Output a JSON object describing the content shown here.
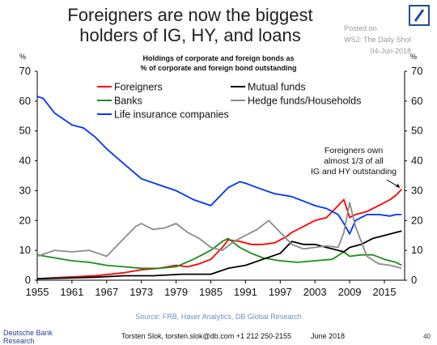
{
  "header": {
    "title_line1": "Foreigners are now the biggest",
    "title_line2": "holders of IG, HY, and loans",
    "posted_on": "Posted on",
    "posted_source": "WSJ: The Daily Shot",
    "posted_date": "04-Jun-2018"
  },
  "footer": {
    "bank_line1": "Deutsche Bank",
    "bank_line2": "Research",
    "author": "Torsten Slok, torsten.slok@db.com  +1 212 250-2155",
    "date": "June 2018",
    "page": "40",
    "source": "Source: FRB, Haver Analytics, DB Global Research"
  },
  "colors": {
    "foreigners": "#ff0000",
    "banks": "#1a8f1a",
    "life_insurance": "#0033ff",
    "mutual_funds": "#000000",
    "hedge_funds_households": "#8c8c8c",
    "brand": "#1d4f9c"
  },
  "chart_data": {
    "type": "line",
    "title": "Holdings of corporate and foreign bonds as",
    "subtitle": "% of corporate and foreign bond outstanding",
    "ylabel_left": "%",
    "ylabel_right": "%",
    "xlim": [
      1955,
      2018.5
    ],
    "ylim": [
      0,
      70
    ],
    "x_ticks": [
      "1955",
      "1961",
      "1967",
      "1973",
      "1979",
      "1985",
      "1991",
      "1997",
      "2003",
      "2009",
      "2015"
    ],
    "y_ticks": [
      "0",
      "10",
      "20",
      "30",
      "40",
      "50",
      "60",
      "70"
    ],
    "grid": false,
    "legend_position": "top-left",
    "annotation": {
      "lines": [
        "Foreigners own",
        "almost 1/3 of all",
        "IG and HY outstanding"
      ],
      "points_to": [
        2017.8,
        30.5
      ]
    },
    "series": [
      {
        "name": "Foreigners",
        "color": "#ff0000",
        "x": [
          1955,
          1960,
          1965,
          1970,
          1973,
          1976,
          1979,
          1981,
          1983,
          1985,
          1987,
          1988,
          1990,
          1992,
          1994,
          1996,
          1998,
          1999,
          2001,
          2003,
          2005,
          2007,
          2008,
          2009,
          2010,
          2012,
          2014,
          2015,
          2016,
          2017,
          2018
        ],
        "values": [
          0.5,
          1,
          1.5,
          2.5,
          3.5,
          4,
          5,
          4.5,
          5.5,
          7,
          11,
          13.5,
          13,
          12,
          12,
          12.5,
          14.5,
          16,
          18,
          20,
          21,
          25,
          27,
          21,
          22,
          23,
          25,
          26,
          27,
          28.5,
          30.5
        ]
      },
      {
        "name": "Banks",
        "color": "#1a8f1a",
        "x": [
          1955,
          1958,
          1961,
          1964,
          1967,
          1970,
          1973,
          1976,
          1979,
          1982,
          1985,
          1987,
          1988,
          1990,
          1992,
          1994,
          1997,
          2000,
          2003,
          2006,
          2008,
          2009,
          2011,
          2013,
          2015,
          2017,
          2018
        ],
        "values": [
          8.5,
          7.5,
          6.5,
          6,
          5,
          4.5,
          4,
          4,
          4.5,
          7,
          10,
          13,
          14,
          11,
          9,
          7.5,
          6.5,
          6,
          6.5,
          7,
          9.5,
          8,
          8.5,
          8.5,
          7,
          6,
          5
        ]
      },
      {
        "name": "Life insurance companies",
        "color": "#0033ff",
        "x": [
          1955,
          1956,
          1958,
          1961,
          1963,
          1965,
          1967,
          1970,
          1973,
          1976,
          1979,
          1982,
          1985,
          1988,
          1990,
          1991,
          1993,
          1996,
          1999,
          2001,
          2003,
          2005,
          2007,
          2008,
          2009,
          2010,
          2012,
          2014,
          2016,
          2017,
          2018
        ],
        "values": [
          61.5,
          61,
          56,
          52,
          51,
          48,
          44,
          39,
          34,
          32,
          30,
          27,
          25,
          31,
          33,
          32.5,
          31,
          29,
          28,
          26.5,
          25,
          24,
          22,
          19,
          15.5,
          20,
          22,
          22,
          21.5,
          22,
          22
        ]
      },
      {
        "name": "Mutual funds",
        "color": "#000000",
        "x": [
          1955,
          1965,
          1970,
          1975,
          1980,
          1985,
          1988,
          1991,
          1994,
          1997,
          1999,
          2001,
          2003,
          2005,
          2007,
          2008,
          2009,
          2011,
          2013,
          2015,
          2017,
          2018
        ],
        "values": [
          0.5,
          1,
          1.5,
          1.5,
          2,
          2,
          4,
          5,
          7,
          9,
          13,
          12,
          12,
          11,
          10,
          9.5,
          11,
          12,
          14,
          15,
          16,
          16.5
        ]
      },
      {
        "name": "Hedge funds/Households",
        "color": "#8c8c8c",
        "x": [
          1955,
          1958,
          1961,
          1964,
          1967,
          1970,
          1972,
          1973,
          1975,
          1977,
          1979,
          1981,
          1983,
          1985,
          1987,
          1989,
          1991,
          1993,
          1995,
          1997,
          1999,
          2001,
          2003,
          2005,
          2007,
          2008,
          2009,
          2010,
          2012,
          2014,
          2016,
          2018
        ],
        "values": [
          8,
          10,
          9.5,
          10,
          8,
          14,
          18,
          19,
          17,
          17.5,
          19,
          16,
          14,
          11,
          10,
          13,
          15,
          17,
          20,
          16,
          12,
          10.5,
          11,
          11.5,
          11,
          16,
          26,
          18,
          8,
          5.5,
          5,
          4
        ]
      }
    ]
  }
}
